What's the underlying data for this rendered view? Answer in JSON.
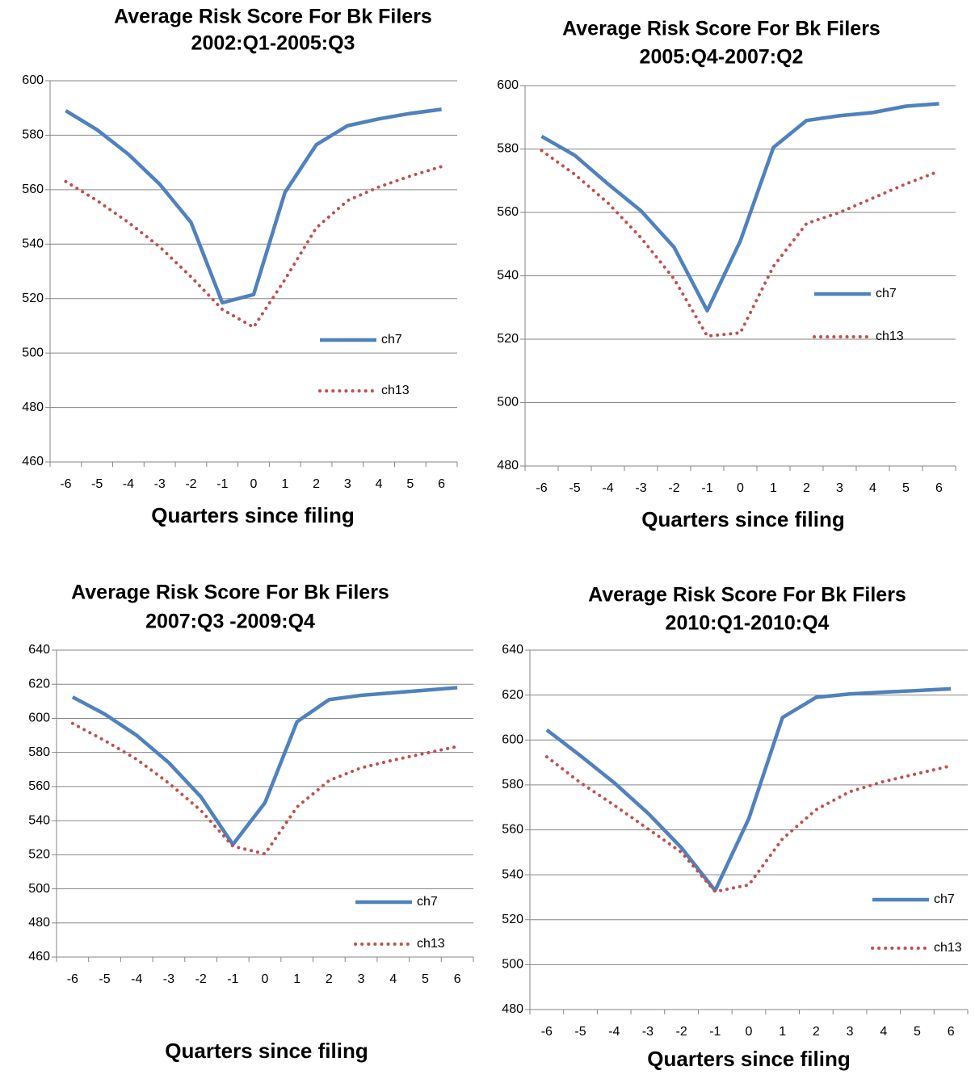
{
  "chart_data": [
    {
      "type": "line",
      "title": "Average Risk Score For Bk Filers",
      "subtitle": "2002:Q1-2005:Q3",
      "x_label": "Quarters since filing",
      "categories": [
        "-6",
        "-5",
        "-4",
        "-3",
        "-2",
        "-1",
        "0",
        "1",
        "2",
        "3",
        "4",
        "5",
        "6"
      ],
      "series": [
        {
          "name": "ch7",
          "color": "#4f81bd",
          "line_style": "solid",
          "values": [
            589,
            582,
            573,
            562,
            548,
            518.5,
            521.5,
            559,
            576.5,
            583.5,
            586,
            588,
            589.5
          ]
        },
        {
          "name": "ch13",
          "color": "#c0504d",
          "line_style": "dotted",
          "values": [
            563,
            556,
            548,
            539,
            528,
            516,
            509.5,
            527,
            546,
            556,
            561,
            565,
            568.5
          ]
        }
      ],
      "ylim": [
        460,
        600
      ],
      "yticks": [
        460,
        480,
        500,
        520,
        540,
        560,
        580,
        600
      ],
      "grid": true,
      "legend": "right"
    },
    {
      "type": "line",
      "title": "Average Risk Score For Bk Filers",
      "subtitle": "2005:Q4-2007:Q2",
      "x_label": "Quarters since filing",
      "categories": [
        "-6",
        "-5",
        "-4",
        "-3",
        "-2",
        "-1",
        "0",
        "1",
        "2",
        "3",
        "4",
        "5",
        "6"
      ],
      "series": [
        {
          "name": "ch7",
          "color": "#4f81bd",
          "line_style": "solid",
          "values": [
            584,
            578,
            569,
            560.5,
            549,
            529,
            551,
            580.5,
            589,
            590.5,
            591.5,
            593.5,
            594.3
          ]
        },
        {
          "name": "ch13",
          "color": "#c0504d",
          "line_style": "dotted",
          "values": [
            579.5,
            572,
            563,
            552,
            539,
            521,
            522,
            543,
            556.5,
            560,
            564.5,
            569,
            573
          ]
        }
      ],
      "ylim": [
        480,
        600
      ],
      "yticks": [
        480,
        500,
        520,
        540,
        560,
        580,
        600
      ],
      "grid": true,
      "legend": "right"
    },
    {
      "type": "line",
      "title": "Average Risk Score For Bk Filers",
      "subtitle": "2007:Q3 -2009:Q4",
      "x_label": "Quarters since filing",
      "categories": [
        "-6",
        "-5",
        "-4",
        "-3",
        "-2",
        "-1",
        "0",
        "1",
        "2",
        "3",
        "4",
        "5",
        "6"
      ],
      "series": [
        {
          "name": "ch7",
          "color": "#4f81bd",
          "line_style": "solid",
          "values": [
            612.5,
            602.5,
            590,
            574,
            554,
            526,
            550.5,
            598,
            611,
            613.5,
            615,
            616.5,
            618
          ]
        },
        {
          "name": "ch13",
          "color": "#c0504d",
          "line_style": "dotted",
          "values": [
            597,
            587,
            576,
            562,
            546,
            525,
            520.5,
            548,
            563.5,
            571,
            575.5,
            579.5,
            583.5
          ]
        }
      ],
      "ylim": [
        460,
        640
      ],
      "yticks": [
        460,
        480,
        500,
        520,
        540,
        560,
        580,
        600,
        620,
        640
      ],
      "grid": true,
      "legend": "right"
    },
    {
      "type": "line",
      "title": "Average Risk Score For Bk Filers",
      "subtitle": "2010:Q1-2010:Q4",
      "x_label": "Quarters since filing",
      "categories": [
        "-6",
        "-5",
        "-4",
        "-3",
        "-2",
        "-1",
        "0",
        "1",
        "2",
        "3",
        "4",
        "5",
        "6"
      ],
      "series": [
        {
          "name": "ch7",
          "color": "#4f81bd",
          "line_style": "solid",
          "values": [
            604.5,
            593,
            581,
            567.5,
            552,
            533,
            565,
            610,
            619,
            620.5,
            621.3,
            622,
            622.8
          ]
        },
        {
          "name": "ch13",
          "color": "#c0504d",
          "line_style": "dotted",
          "values": [
            592.5,
            581,
            571,
            560.5,
            550,
            532.5,
            535.5,
            556,
            569,
            577,
            581.5,
            585,
            588.5
          ]
        }
      ],
      "ylim": [
        480,
        640
      ],
      "yticks": [
        480,
        500,
        520,
        540,
        560,
        580,
        600,
        620,
        640
      ],
      "grid": true,
      "legend": "right"
    }
  ]
}
